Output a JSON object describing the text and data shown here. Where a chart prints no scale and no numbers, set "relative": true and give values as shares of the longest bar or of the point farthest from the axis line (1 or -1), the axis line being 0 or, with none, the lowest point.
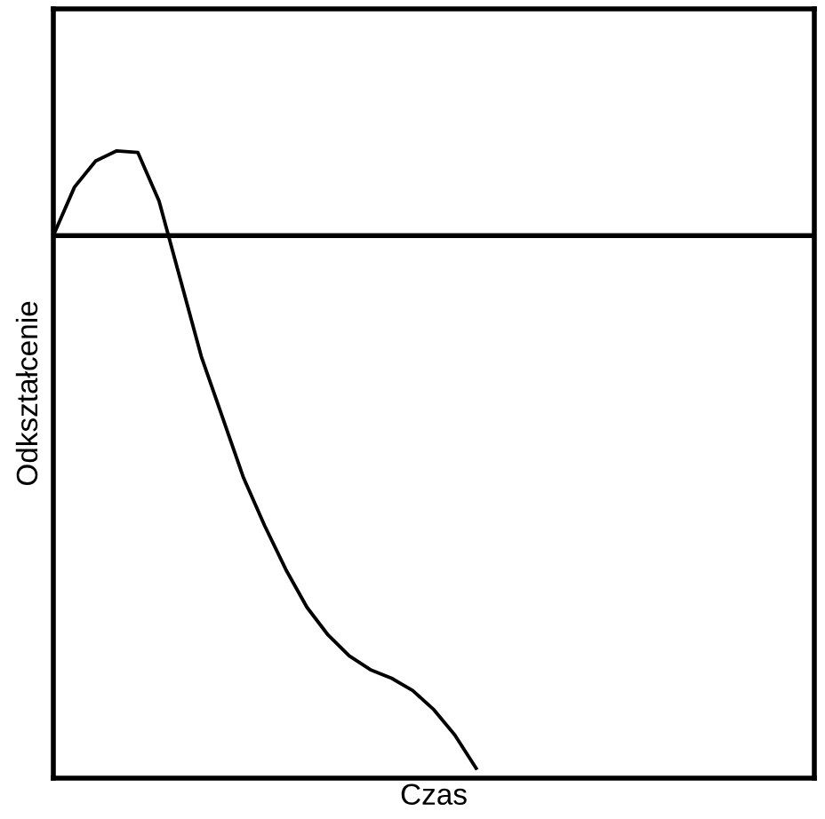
{
  "chart_data": {
    "type": "line",
    "relative": true,
    "xlabel": "Czas",
    "ylabel": "Odkształcenie",
    "categories": [
      null,
      null,
      null,
      null,
      null,
      null,
      null,
      null,
      null,
      null,
      null,
      null,
      null,
      null,
      null,
      null,
      null,
      null,
      null,
      null,
      null,
      null,
      null,
      null,
      null,
      null,
      null,
      null,
      null,
      null,
      null,
      null,
      null,
      null,
      null,
      null,
      null
    ],
    "series": [
      {
        "color": "#000000",
        "values": [
          0,
          0.091,
          0.14,
          0.159,
          0.156,
          0.065,
          -0.081,
          -0.227,
          -0.341,
          -0.455,
          -0.545,
          -0.627,
          -0.698,
          -0.75,
          -0.789,
          -0.815,
          -0.831,
          -0.854,
          -0.89,
          -0.938,
          -1,
          null,
          null,
          null,
          null,
          null,
          null,
          null,
          null,
          null,
          null,
          null,
          null,
          null,
          null,
          null,
          null
        ]
      }
    ],
    "marker": "none",
    "line_style": "solid"
  }
}
